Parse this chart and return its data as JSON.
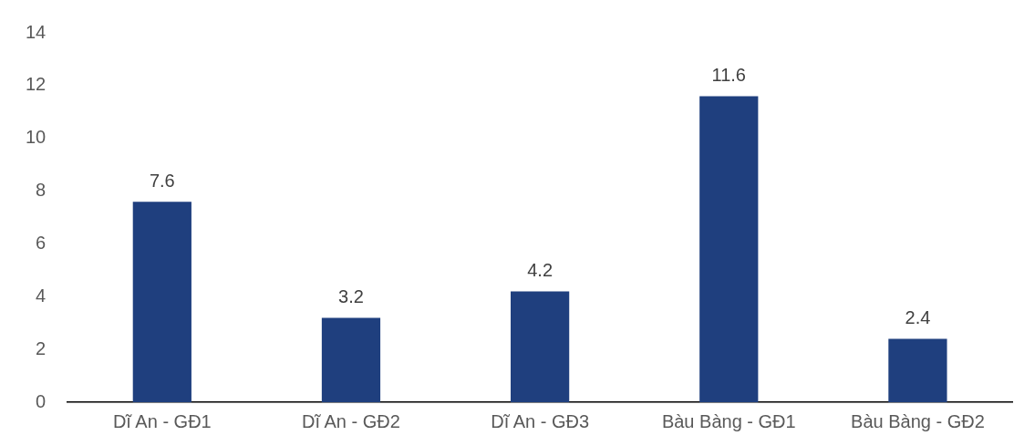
{
  "chart_data": {
    "type": "bar",
    "categories": [
      "Dĩ An - GĐ1",
      "Dĩ An - GĐ2",
      "Dĩ An - GĐ3",
      "Bàu Bàng - GĐ1",
      "Bàu Bàng - GĐ2"
    ],
    "values": [
      7.6,
      3.2,
      4.2,
      11.6,
      2.4
    ],
    "color": "#1f3f7e",
    "ylim": [
      0,
      14
    ],
    "yticks": [
      0,
      2,
      4,
      6,
      8,
      10,
      12,
      14
    ],
    "grid": false,
    "legend": false,
    "data_labels": true
  }
}
